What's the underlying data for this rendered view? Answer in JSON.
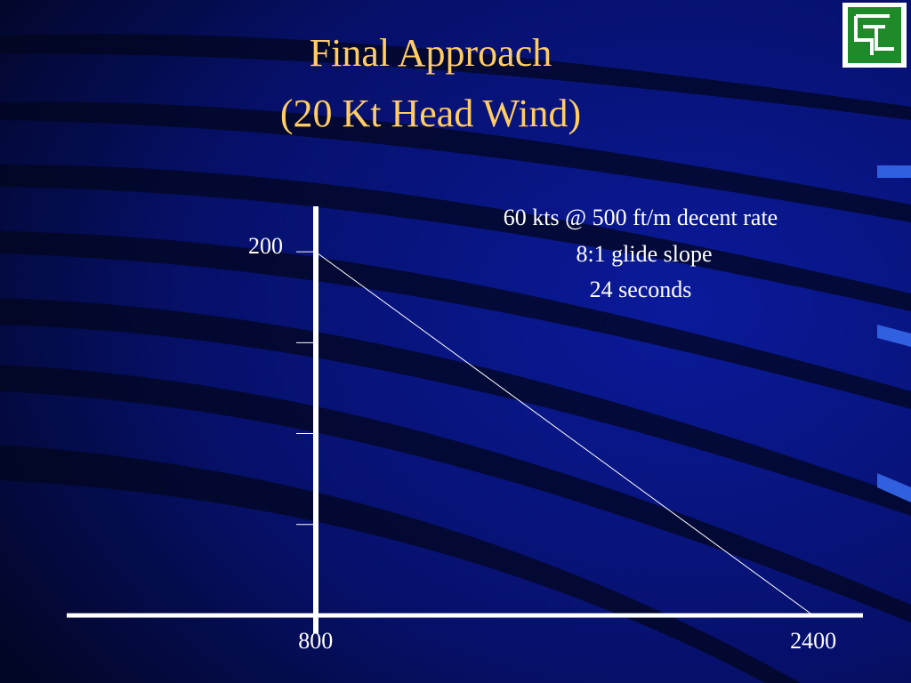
{
  "chart_data": {
    "type": "line",
    "title": "Final Approach",
    "subtitle": "(20 Kt Head Wind)",
    "annotations": [
      "60 kts @ 500 ft/m decent rate",
      "8:1 glide slope",
      "24 seconds"
    ],
    "x": [
      800,
      2400
    ],
    "series": [
      {
        "color": "#ffffff",
        "values": [
          200,
          0
        ]
      }
    ],
    "xlim": [
      0,
      2560
    ],
    "xticks": [
      800,
      2400
    ],
    "ylim": [
      0,
      225
    ],
    "yticks": [
      200
    ],
    "minor_yticks": [
      50,
      100,
      150
    ],
    "axis_color": "#ffffff",
    "title_color": "#ffcc66"
  }
}
